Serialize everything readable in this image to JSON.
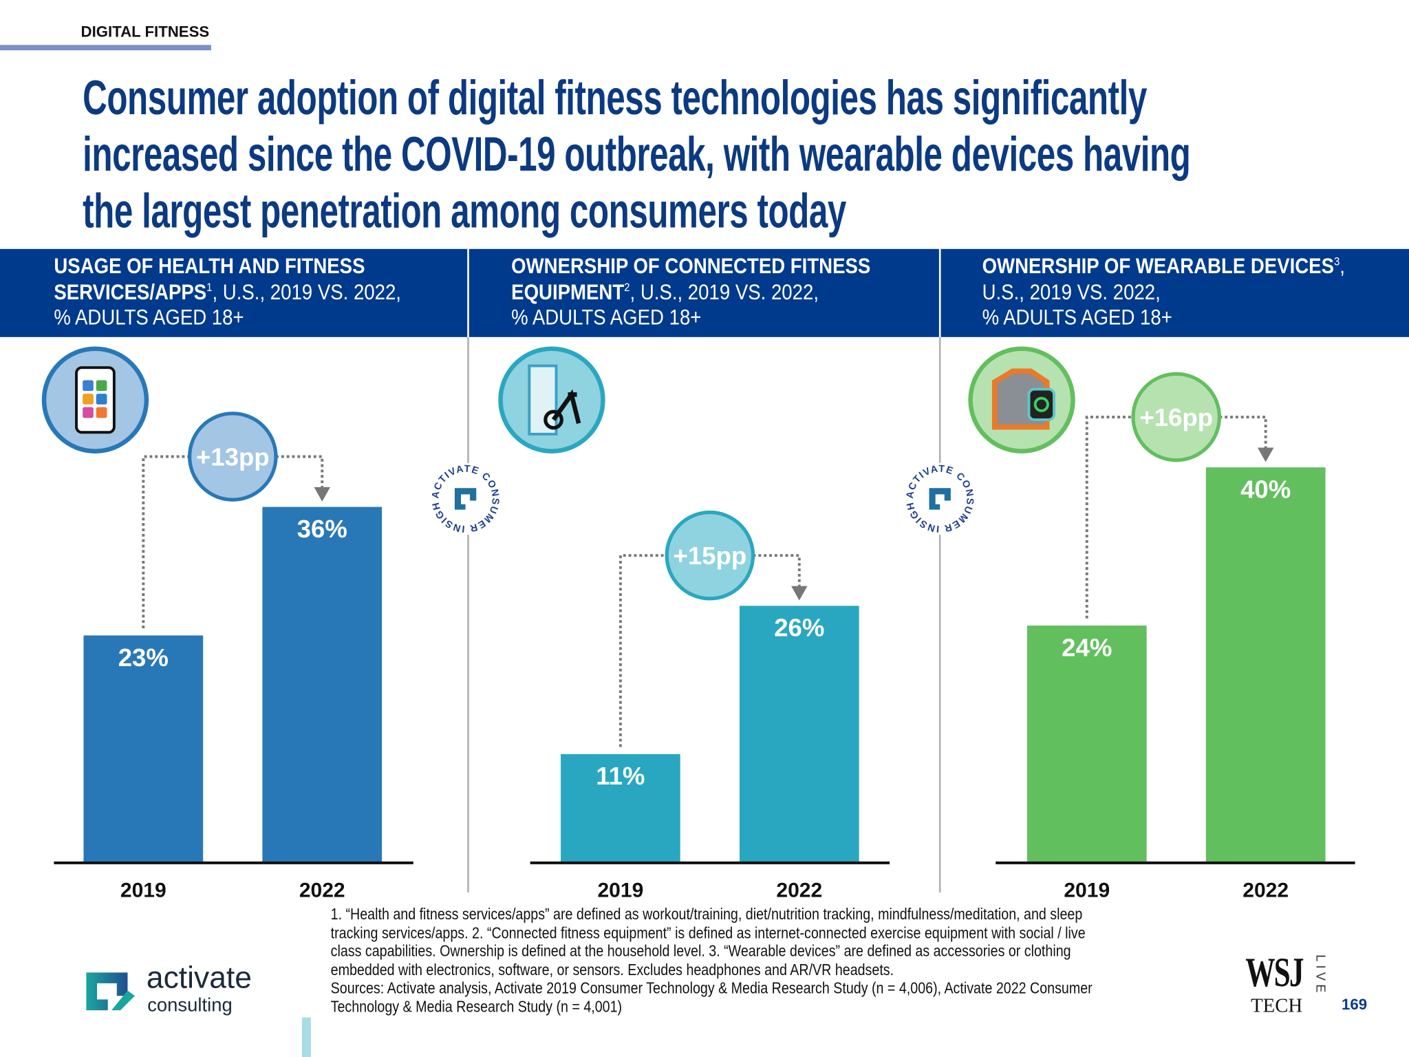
{
  "section_label": "DIGITAL FITNESS",
  "title_lines": [
    "Consumer adoption of digital fitness technologies has significantly",
    "increased since the COVID-19 outbreak, with wearable devices having",
    "the largest penetration among consumers today"
  ],
  "panels": [
    {
      "title_bold": "USAGE OF HEALTH AND FITNESS",
      "title_bold2": "SERVICES/APPS",
      "sup": "1",
      "title_rest": ", U.S., 2019 VS. 2022,",
      "title_line3": "% ADULTS AGED 18+",
      "icon": "smartphone-apps-icon"
    },
    {
      "title_bold": "OWNERSHIP OF CONNECTED FITNESS",
      "title_bold2": "EQUIPMENT",
      "sup": "2",
      "title_rest": ", U.S., 2019 VS. 2022,",
      "title_line3": "% ADULTS AGED 18+",
      "icon": "smart-mirror-bike-icon"
    },
    {
      "title_bold": "OWNERSHIP OF WEARABLE DEVICES",
      "title_bold2": "",
      "sup": "3",
      "title_rest": "U.S., 2019 VS. 2022,",
      "title_line3": "% ADULTS AGED 18+",
      "icon": "shirt-smartwatch-icon"
    }
  ],
  "chart_data": [
    {
      "type": "bar",
      "categories": [
        "2019",
        "2022"
      ],
      "values": [
        23,
        36
      ],
      "labels": [
        "23%",
        "36%"
      ],
      "delta": "+13pp",
      "unit": "%",
      "color": "#2878b8",
      "delta_fill": "#a2c6e4",
      "ylim": [
        0,
        40
      ],
      "grid": false
    },
    {
      "type": "bar",
      "categories": [
        "2019",
        "2022"
      ],
      "values": [
        11,
        26
      ],
      "labels": [
        "11%",
        "26%"
      ],
      "delta": "+15pp",
      "unit": "%",
      "color": "#2aa7c0",
      "delta_fill": "#8fd3e0",
      "ylim": [
        0,
        40
      ],
      "grid": false
    },
    {
      "type": "bar",
      "categories": [
        "2019",
        "2022"
      ],
      "values": [
        24,
        40
      ],
      "labels": [
        "24%",
        "40%"
      ],
      "delta": "+16pp",
      "unit": "%",
      "color": "#62bf5e",
      "delta_fill": "#b6e2b0",
      "ylim": [
        0,
        40
      ],
      "grid": false
    }
  ],
  "seal_text": "ACTIVATE CONSUMER INSIGHT",
  "footnotes": [
    "1. “Health and fitness services/apps” are defined as workout/training, diet/nutrition tracking, mindfulness/meditation, and sleep",
    "tracking services/apps.  2. “Connected fitness equipment” is defined as internet-connected exercise equipment with social / live",
    "class capabilities. Ownership is defined at the household level.  3. “Wearable devices” are defined as accessories or clothing",
    "embedded with electronics, software, or sensors. Excludes headphones and AR/VR headsets.",
    "Sources: Activate analysis, Activate 2019 Consumer Technology & Media Research Study (n = 4,006), Activate 2022 Consumer",
    "Technology & Media Research Study (n = 4,001)"
  ],
  "logo": {
    "line1": "activate",
    "line2": "consulting"
  },
  "wsj": {
    "wsj": "WSJ",
    "tech": "TECH",
    "live": "LIVE"
  },
  "page_number": "169",
  "colors": {
    "navy": "#003a8c",
    "title": "#0b3a82"
  }
}
